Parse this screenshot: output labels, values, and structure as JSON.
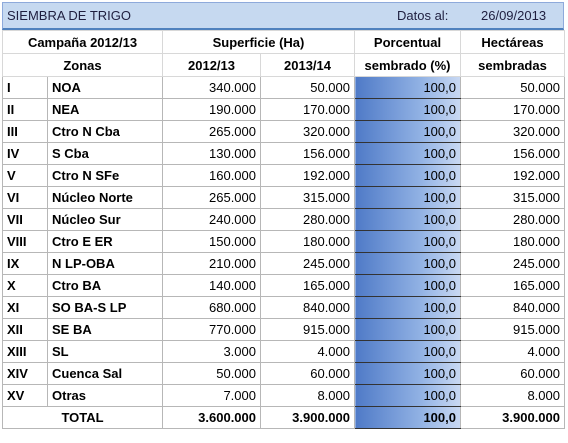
{
  "header": {
    "title": "SIEMBRA DE TRIGO",
    "date_label": "Datos al:",
    "date": "26/09/2013"
  },
  "table": {
    "header_rows": [
      [
        "Campaña 2012/13",
        "Superficie (Ha)",
        "Porcentual",
        "Hectáreas"
      ],
      [
        "Zonas",
        "2012/13",
        "2013/14",
        "sembrado (%)",
        "sembradas"
      ]
    ],
    "rows": [
      [
        "I",
        "NOA",
        "340.000",
        "50.000",
        "100,0",
        "50.000"
      ],
      [
        "II",
        "NEA",
        "190.000",
        "170.000",
        "100,0",
        "170.000"
      ],
      [
        "III",
        "Ctro N Cba",
        "265.000",
        "320.000",
        "100,0",
        "320.000"
      ],
      [
        "IV",
        "S Cba",
        "130.000",
        "156.000",
        "100,0",
        "156.000"
      ],
      [
        "V",
        "Ctro N SFe",
        "160.000",
        "192.000",
        "100,0",
        "192.000"
      ],
      [
        "VI",
        "Núcleo Norte",
        "265.000",
        "315.000",
        "100,0",
        "315.000"
      ],
      [
        "VII",
        "Núcleo Sur",
        "240.000",
        "280.000",
        "100,0",
        "280.000"
      ],
      [
        "VIII",
        "Ctro E ER",
        "150.000",
        "180.000",
        "100,0",
        "180.000"
      ],
      [
        "IX",
        "N LP-OBA",
        "210.000",
        "245.000",
        "100,0",
        "245.000"
      ],
      [
        "X",
        "Ctro BA",
        "140.000",
        "165.000",
        "100,0",
        "165.000"
      ],
      [
        "XI",
        "SO BA-S LP",
        "680.000",
        "840.000",
        "100,0",
        "840.000"
      ],
      [
        "XII",
        "SE BA",
        "770.000",
        "915.000",
        "100,0",
        "915.000"
      ],
      [
        "XIII",
        "SL",
        "3.000",
        "4.000",
        "100,0",
        "4.000"
      ],
      [
        "XIV",
        "Cuenca Sal",
        "50.000",
        "60.000",
        "100,0",
        "60.000"
      ],
      [
        "XV",
        "Otras",
        "7.000",
        "8.000",
        "100,0",
        "8.000"
      ]
    ],
    "total": [
      "TOTAL",
      "3.600.000",
      "3.900.000",
      "100,0",
      "3.900.000"
    ]
  }
}
